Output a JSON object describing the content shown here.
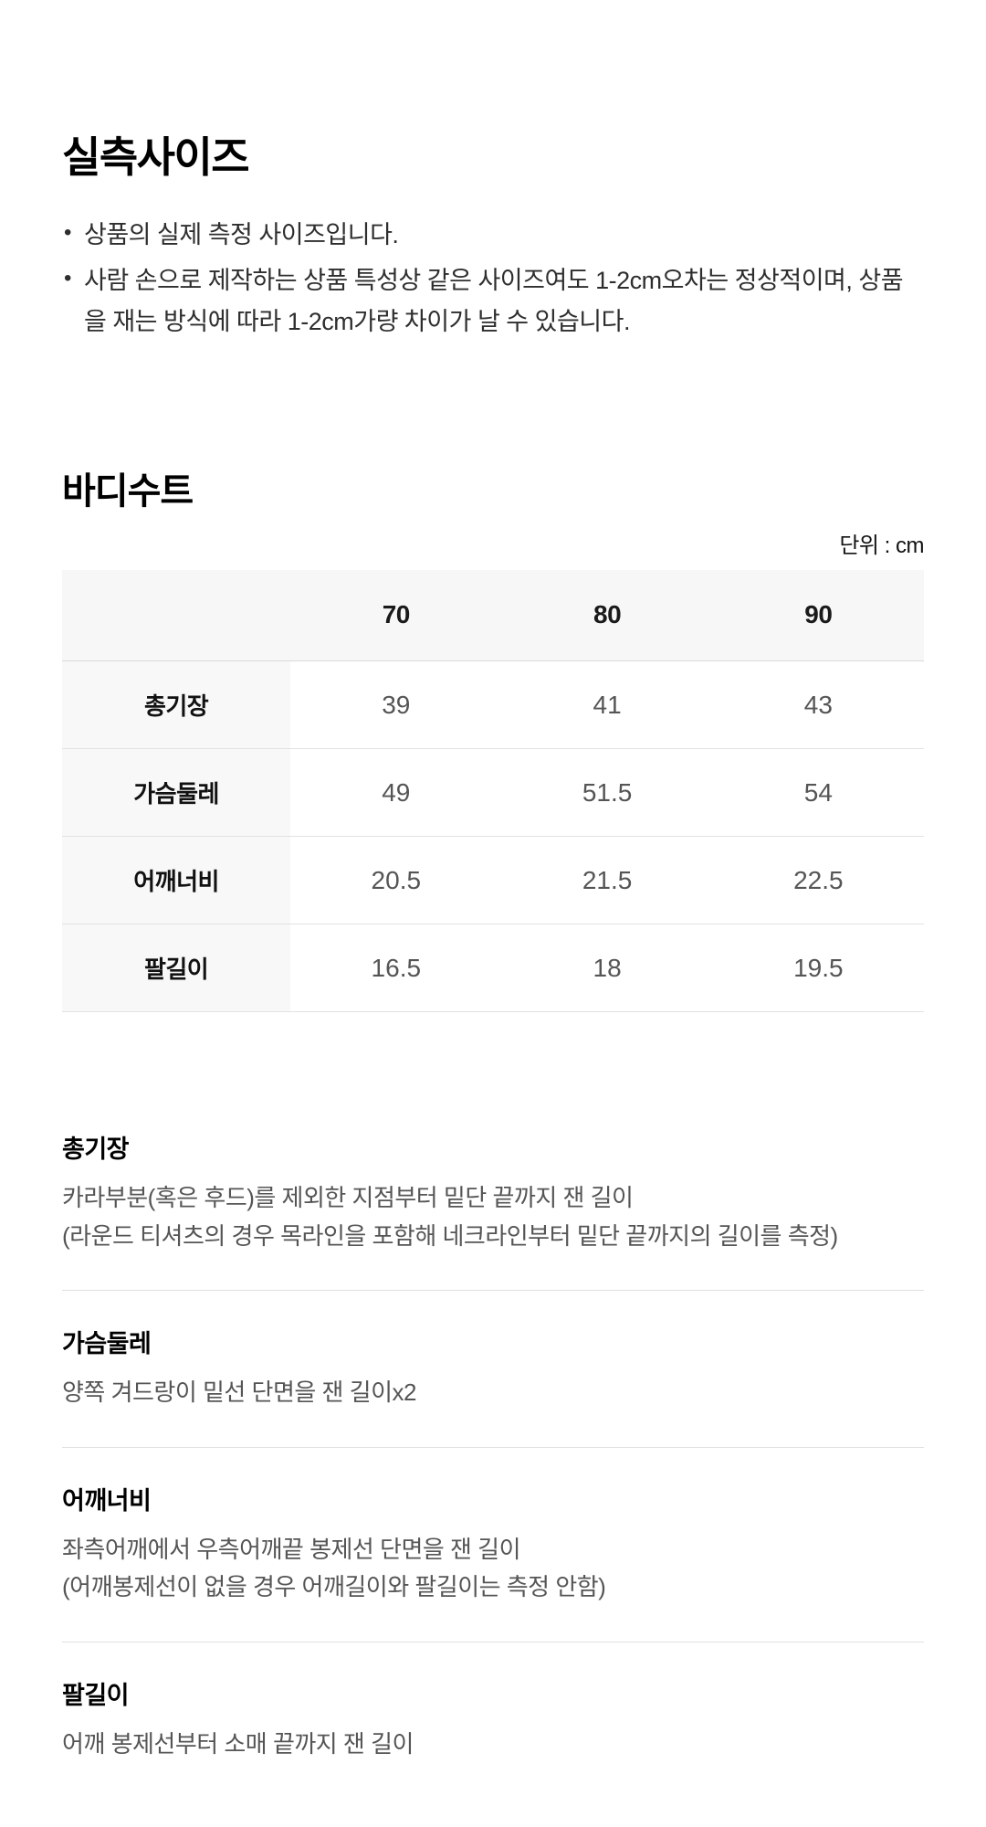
{
  "page": {
    "title": "실측사이즈",
    "notes": [
      "상품의 실제 측정 사이즈입니다.",
      "사람 손으로 제작하는 상품 특성상 같은 사이즈여도 1-2cm오차는 정상적이며, 상품을 재는 방식에 따라 1-2cm가량 차이가 날 수 있습니다."
    ]
  },
  "size_section": {
    "title": "바디수트",
    "unit_label": "단위 : cm"
  },
  "size_table": {
    "columns": [
      "70",
      "80",
      "90"
    ],
    "rows": [
      {
        "label": "총기장",
        "values": [
          "39",
          "41",
          "43"
        ]
      },
      {
        "label": "가슴둘레",
        "values": [
          "49",
          "51.5",
          "54"
        ]
      },
      {
        "label": "어깨너비",
        "values": [
          "20.5",
          "21.5",
          "22.5"
        ]
      },
      {
        "label": "팔길이",
        "values": [
          "16.5",
          "18",
          "19.5"
        ]
      }
    ]
  },
  "measure_guide": [
    {
      "term": "총기장",
      "lines": [
        "카라부분(혹은 후드)를 제외한 지점부터 밑단 끝까지 잰 길이",
        "(라운드 티셔츠의 경우 목라인을 포함해 네크라인부터 밑단 끝까지의 길이를 측정)"
      ]
    },
    {
      "term": "가슴둘레",
      "lines": [
        "양쪽 겨드랑이 밑선 단면을 잰 길이x2"
      ]
    },
    {
      "term": "어깨너비",
      "lines": [
        "좌측어깨에서 우측어깨끝 봉제선 단면을 잰 길이",
        "(어깨봉제선이 없을 경우 어깨길이와 팔길이는 측정 안함)"
      ]
    },
    {
      "term": "팔길이",
      "lines": [
        "어깨 봉제선부터 소매 끝까지 잰 길이"
      ]
    }
  ],
  "colors": {
    "table_header_bg": "#f7f7f7",
    "row_label_bg": "#f8f8f8",
    "divider": "#e2e2e2",
    "value_text": "#555555",
    "body_text": "#2e2e2e"
  }
}
